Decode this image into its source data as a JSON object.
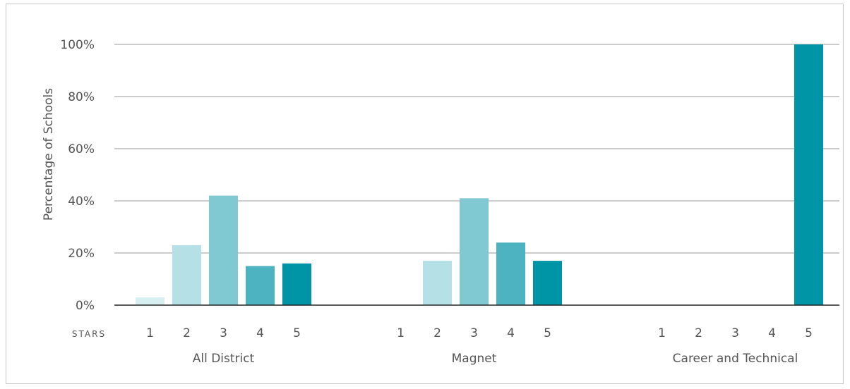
{
  "chart_data": {
    "type": "bar",
    "title": "",
    "ylabel": "Percentage of Schools",
    "x_axis_label": "STARS",
    "ylim": [
      0,
      100
    ],
    "y_ticks": [
      "0%",
      "20%",
      "40%",
      "60%",
      "80%",
      "100%"
    ],
    "categories": [
      "1",
      "2",
      "3",
      "4",
      "5"
    ],
    "groups": [
      {
        "name": "All District",
        "values": [
          3,
          23,
          42,
          15,
          16
        ]
      },
      {
        "name": "Magnet",
        "values": [
          0,
          17,
          41,
          24,
          17
        ]
      },
      {
        "name": "Career and Technical",
        "values": [
          0,
          0,
          0,
          0,
          100
        ]
      }
    ],
    "colors": [
      "#d8eff2",
      "#b5e0e6",
      "#80c9d3",
      "#4db3c1",
      "#0095a6"
    ],
    "grid": true,
    "legend": "none"
  }
}
